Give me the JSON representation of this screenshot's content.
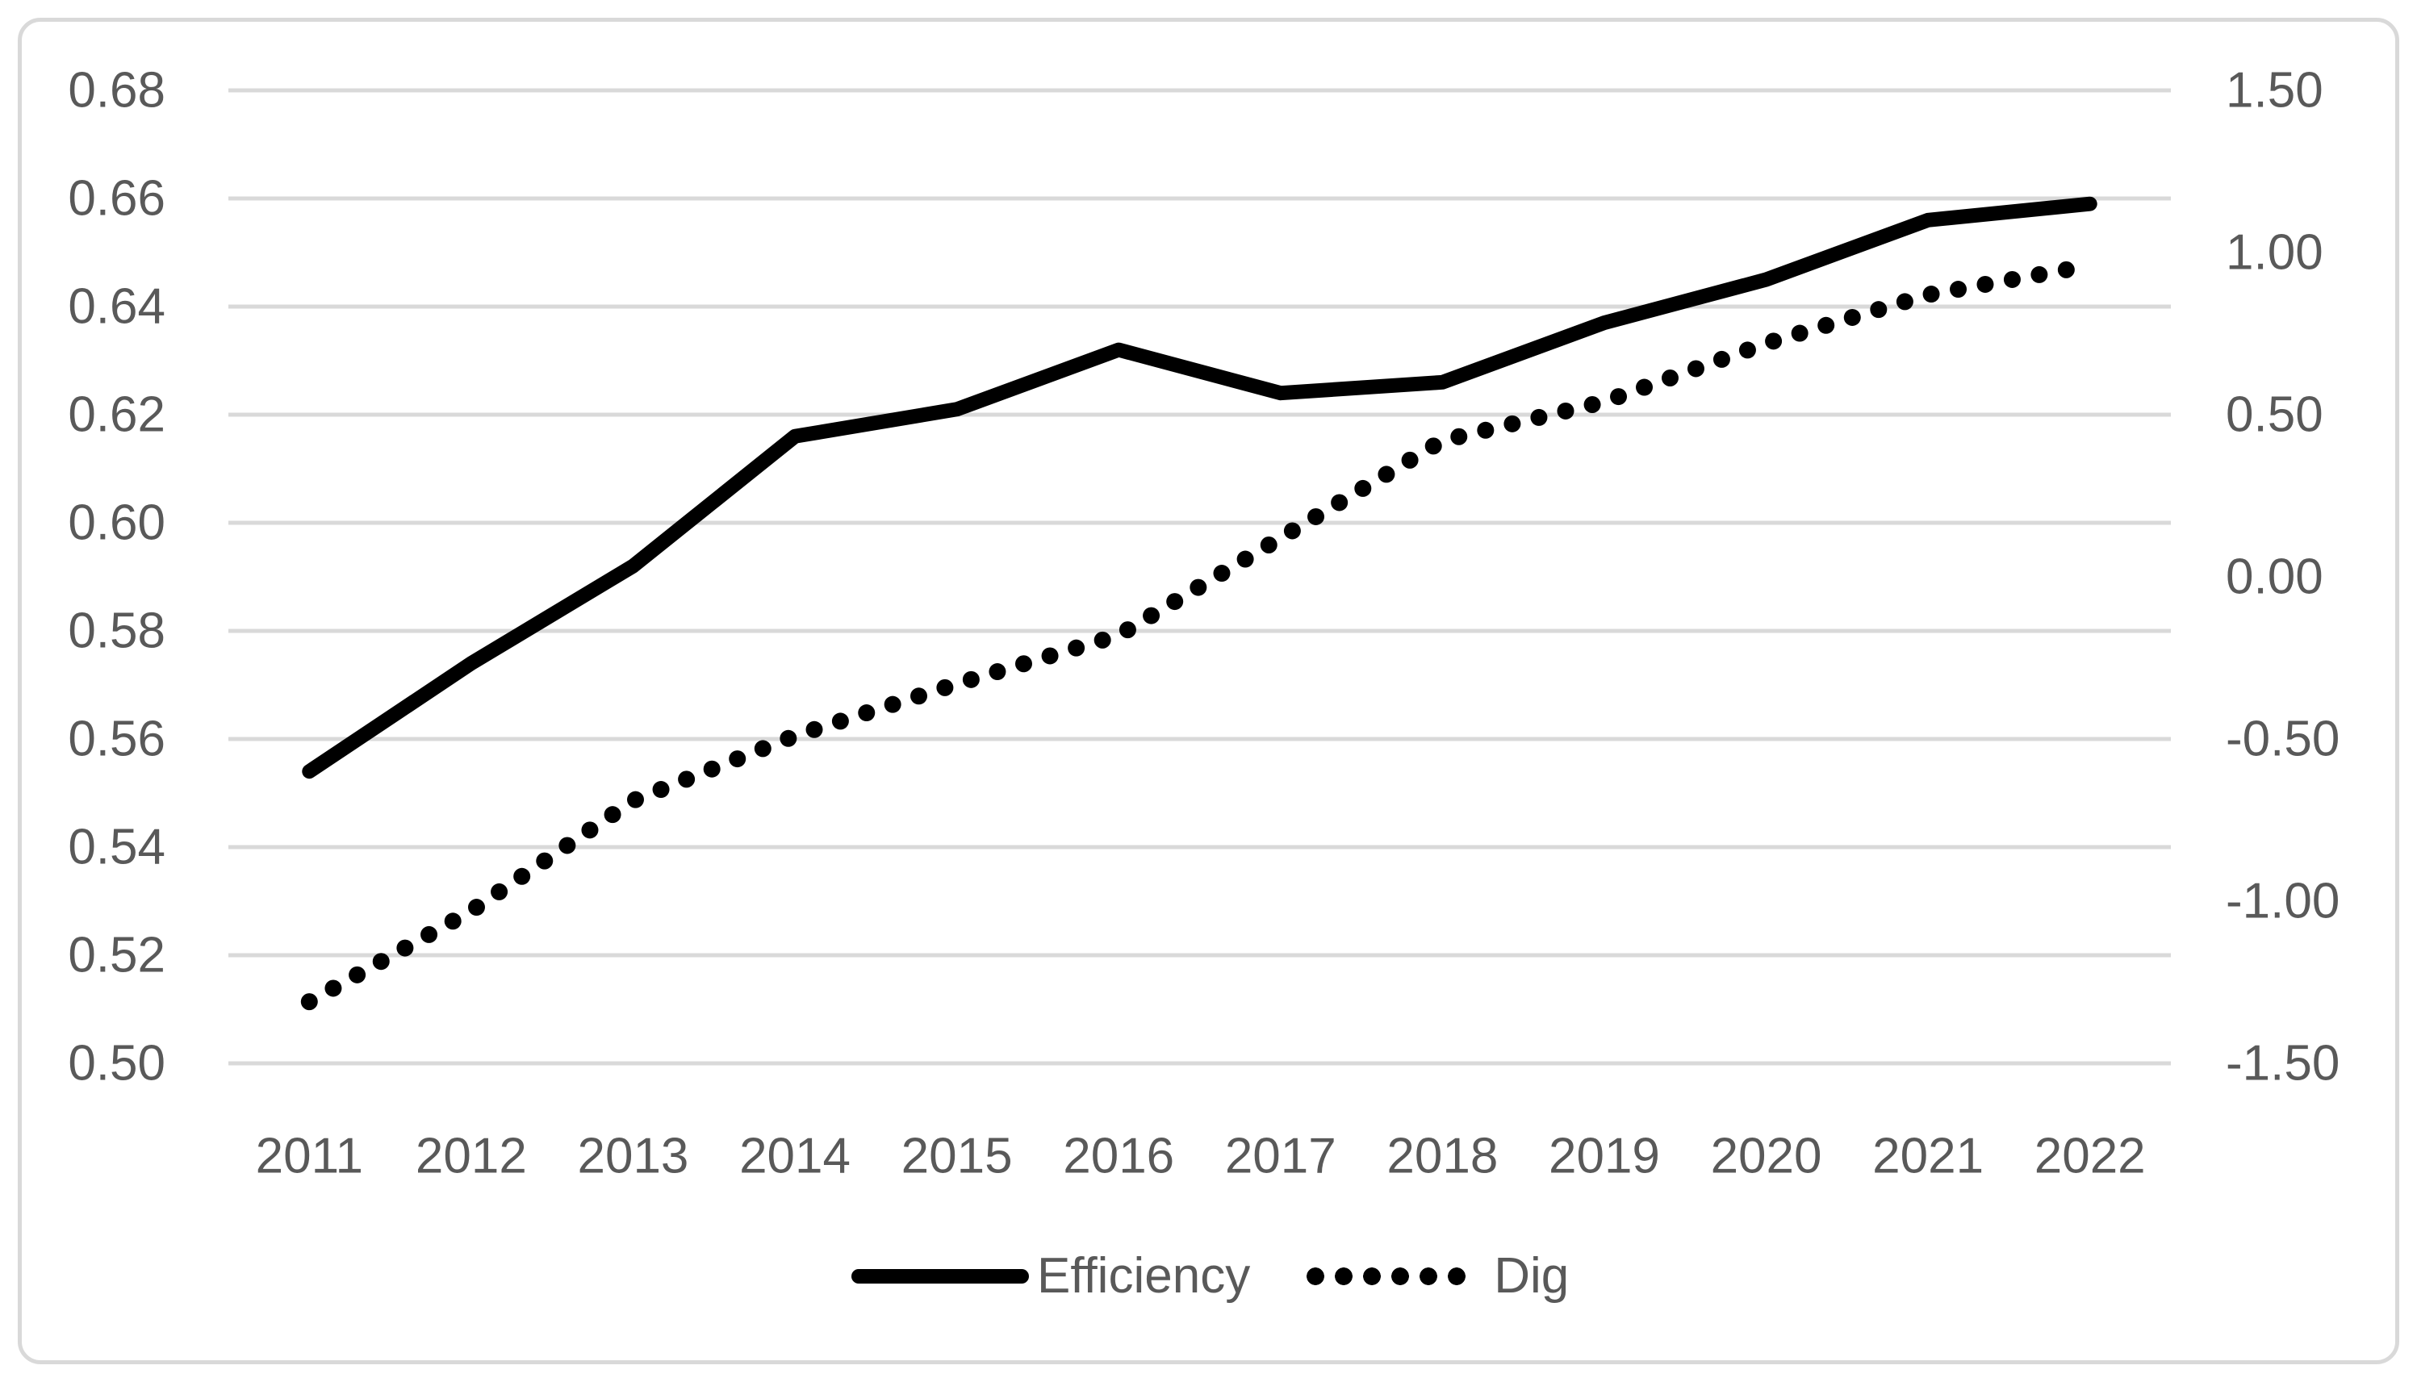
{
  "chart_data": {
    "type": "line",
    "title": "",
    "xlabel": "",
    "ylabel": "",
    "categories": [
      "2011",
      "2012",
      "2013",
      "2014",
      "2015",
      "2016",
      "2017",
      "2018",
      "2019",
      "2020",
      "2021",
      "2022"
    ],
    "series": [
      {
        "name": "Efficiency",
        "axis": "left",
        "style": "solid",
        "values": [
          0.554,
          0.574,
          0.592,
          0.616,
          0.621,
          0.632,
          0.624,
          0.626,
          0.637,
          0.645,
          0.656,
          0.659
        ]
      },
      {
        "name": "Dig",
        "axis": "right",
        "style": "dotted",
        "values": [
          -1.31,
          -1.03,
          -0.69,
          -0.49,
          -0.33,
          -0.18,
          0.12,
          0.42,
          0.54,
          0.72,
          0.87,
          0.96
        ]
      }
    ],
    "left_axis": {
      "min": 0.5,
      "max": 0.68,
      "step": 0.02,
      "tick_labels": [
        "0.68",
        "0.66",
        "0.64",
        "0.62",
        "0.60",
        "0.58",
        "0.56",
        "0.54",
        "0.52",
        "0.50"
      ]
    },
    "right_axis": {
      "min": -1.5,
      "max": 1.5,
      "step": 0.5,
      "tick_labels": [
        "1.50",
        "1.00",
        "0.50",
        "0.00",
        "-0.50",
        "-1.00",
        "-1.50"
      ]
    },
    "grid": true,
    "legend_position": "bottom-center"
  },
  "legend": {
    "efficiency_label": "Efficiency",
    "dig_label": "Dig"
  },
  "colors": {
    "series_line": "#000000",
    "gridline": "#D9D9D9",
    "tick_text": "#595959",
    "frame_border": "#D9D9D9",
    "background": "#FFFFFF"
  }
}
